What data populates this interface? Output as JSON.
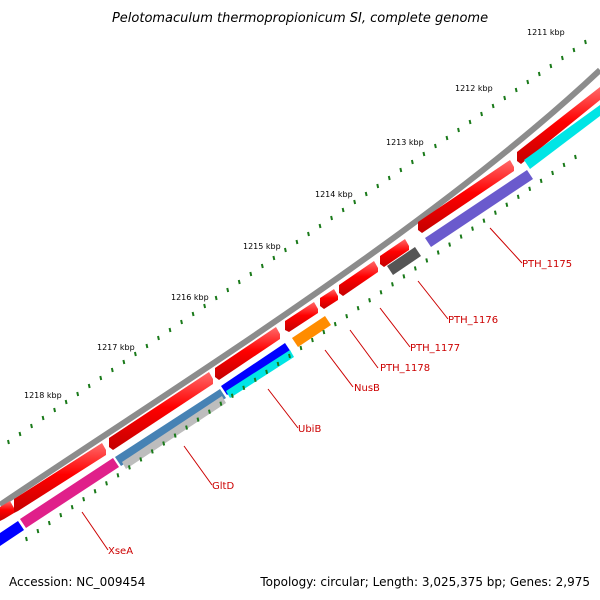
{
  "title": "Pelotomaculum thermopropionicum SI, complete genome",
  "footer": {
    "accession": "Accession: NC_009454",
    "summary": "Topology: circular; Length: 3,025,375 bp; Genes: 2,975"
  },
  "kbp_labels": [
    "1211 kbp",
    "1212 kbp",
    "1213 kbp",
    "1214 kbp",
    "1215 kbp",
    "1216 kbp",
    "1217 kbp",
    "1218 kbp"
  ],
  "gene_labels": [
    "PTH_1175",
    "PTH_1176",
    "PTH_1177",
    "PTH_1178",
    "NusB",
    "UbiB",
    "GltD",
    "XseA"
  ],
  "colors": {
    "backbone": "#808080",
    "forward_gene": "#ff0000",
    "tick": "#1a7a1a",
    "label": "#cc0000",
    "orange": "#ff8c00",
    "purple": "#6a5acd",
    "dark_gray": "#555555",
    "cyan": "#00e5e5",
    "blue": "#0000ff",
    "steelblue": "#4682b4",
    "silver": "#bdbdbd",
    "magenta": "#e0208a"
  }
}
